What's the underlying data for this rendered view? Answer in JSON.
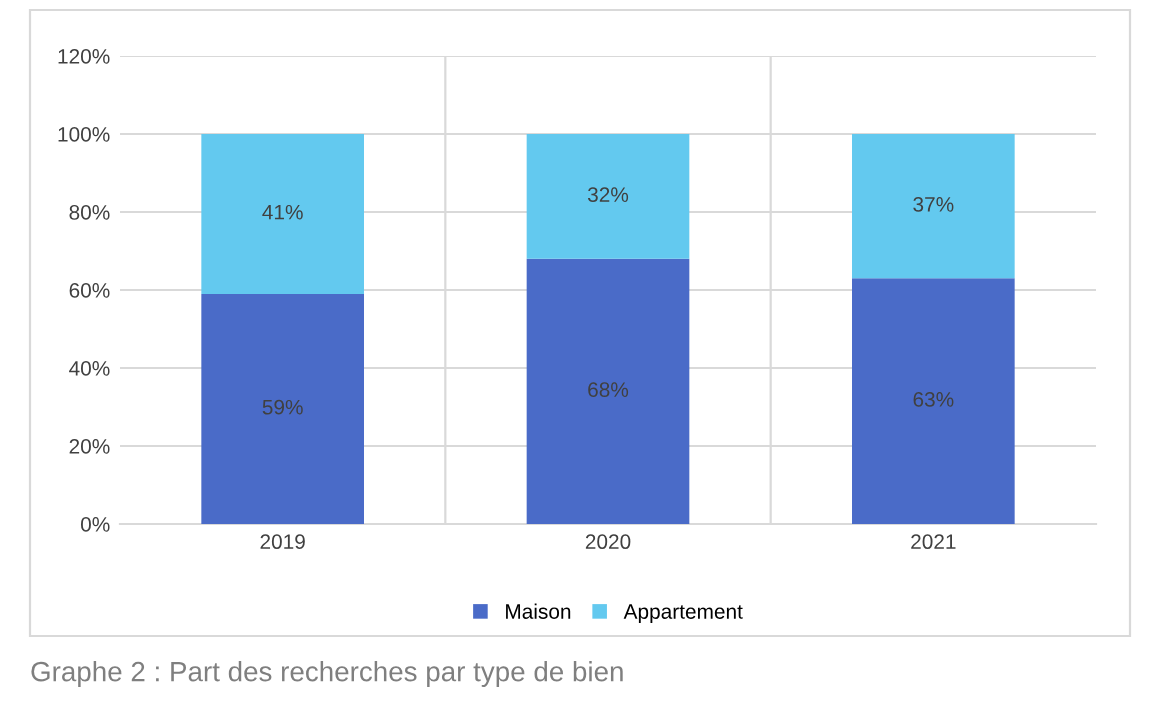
{
  "chart_data": {
    "type": "bar",
    "stacked": true,
    "categories": [
      "2019",
      "2020",
      "2021"
    ],
    "series": [
      {
        "name": "Maison",
        "color": "#4a6bc8",
        "values": [
          59,
          68,
          63
        ],
        "value_labels": [
          "59%",
          "68%",
          "63%"
        ]
      },
      {
        "name": "Appartement",
        "color": "#63c9ef",
        "values": [
          41,
          32,
          37
        ],
        "value_labels": [
          "41%",
          "32%",
          "37%"
        ]
      }
    ],
    "ylim": [
      0,
      120
    ],
    "yticks": [
      {
        "value": 0,
        "label": "0%"
      },
      {
        "value": 20,
        "label": "20%"
      },
      {
        "value": 40,
        "label": "40%"
      },
      {
        "value": 60,
        "label": "60%"
      },
      {
        "value": 80,
        "label": "80%"
      },
      {
        "value": 100,
        "label": "100%"
      },
      {
        "value": 120,
        "label": "120%"
      }
    ],
    "grid": true,
    "legend": "bottom",
    "annotations": [
      "Graphe 2 : Part des recherches par type de bien"
    ]
  }
}
